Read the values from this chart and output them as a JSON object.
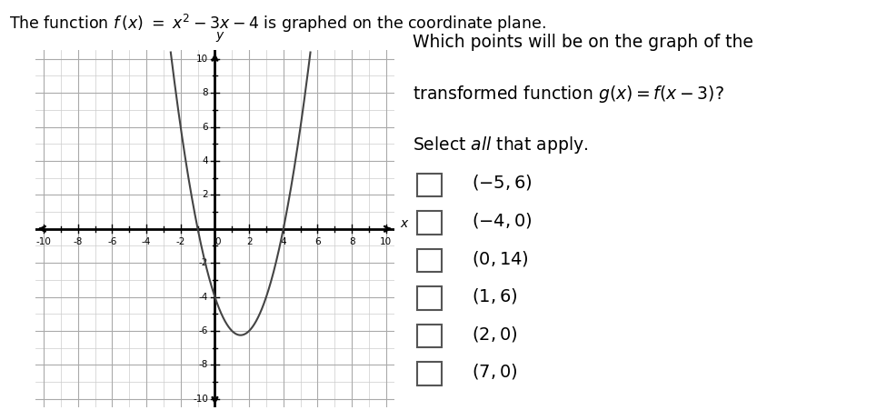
{
  "title_parts": [
    "The function ",
    "f",
    "(",
    "x",
    ")",
    " = ",
    "x",
    "²",
    " – 3",
    "x",
    " – 4",
    " is graphed on the coordinate plane."
  ],
  "title_plain": "The function f (x) = x² – 3x – 4 is graphed on the coordinate plane.",
  "q_line1": "Which points will be on the graph of the",
  "q_line2": "transformed function g(x) = f(x – 3)?",
  "q_line3": "Select all that apply.",
  "choices": [
    "(−5, 6)",
    "(−4, 0)",
    "(0, 14)",
    "(1, 6)",
    "(2, 0)",
    "(7, 0)"
  ],
  "choices_math": [
    "(-5,6)",
    "(-4,0)",
    "(0,14)",
    "(1,6)",
    "(2,0)",
    "(7,0)"
  ],
  "xlim": [
    -10.5,
    10.5
  ],
  "ylim": [
    -10.5,
    10.5
  ],
  "curve_color": "#444444",
  "grid_minor_color": "#cccccc",
  "grid_major_color": "#aaaaaa",
  "axis_color": "#000000",
  "background_color": "#ffffff",
  "plot_bg_color": "#e8e8e8",
  "tick_labels_every": 2,
  "grid_every": 1
}
